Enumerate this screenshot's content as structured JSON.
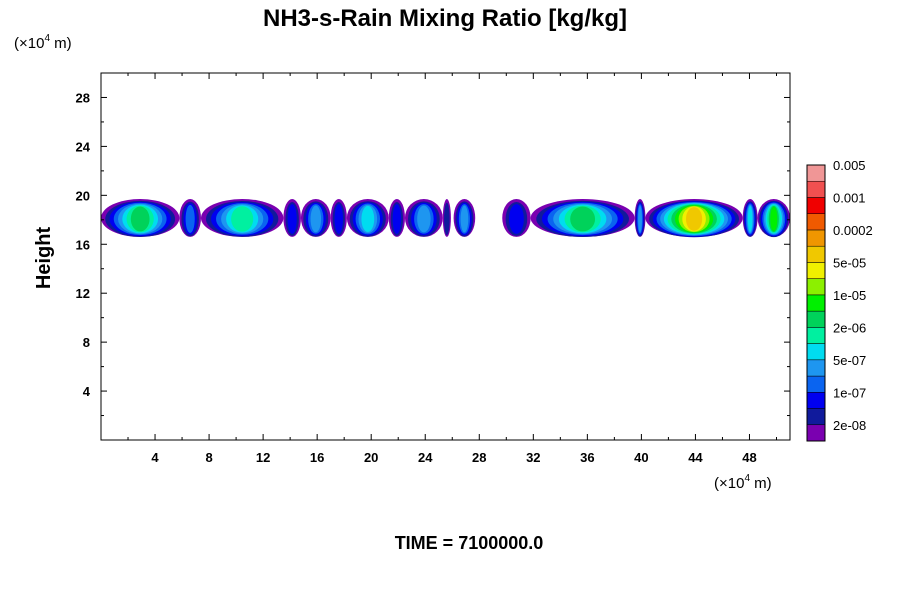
{
  "chart_data": {
    "type": "heatmap",
    "title": "NH3-s-Rain Mixing Ratio [kg/kg]",
    "ylabel": "Height",
    "x_unit": [
      "(×10",
      "4",
      " m)"
    ],
    "y_unit": [
      "(×10",
      "4",
      " m)"
    ],
    "xlim": [
      0,
      51
    ],
    "ylim": [
      0,
      30
    ],
    "x_ticks": [
      4,
      8,
      12,
      16,
      20,
      24,
      28,
      32,
      36,
      40,
      44,
      48
    ],
    "y_ticks": [
      4,
      8,
      12,
      16,
      20,
      24,
      28
    ],
    "time_label": "TIME = 7100000.0",
    "colorbar": {
      "colors": [
        "#7a00b0",
        "#101a9c",
        "#0000f0",
        "#0a64f0",
        "#1e96f0",
        "#00dcf0",
        "#00f0a0",
        "#00d25a",
        "#00f000",
        "#8cf000",
        "#f0f000",
        "#f0c800",
        "#f09600",
        "#f05a00",
        "#f00000",
        "#f05050",
        "#f09696"
      ],
      "labels": [
        "2e-08",
        "1e-07",
        "5e-07",
        "2e-06",
        "1e-05",
        "5e-05",
        "0.0002",
        "0.001",
        "0.005"
      ]
    },
    "cloud_band": {
      "ymin": 16.6,
      "ymax": 19.7,
      "segments": [
        {
          "x0": 0,
          "x1": 5.8,
          "level": 7
        },
        {
          "x0": 5.8,
          "x1": 7.4,
          "level": 3
        },
        {
          "x0": 7.4,
          "x1": 13.5,
          "level": 6
        },
        {
          "x0": 13.5,
          "x1": 14.8,
          "level": 2
        },
        {
          "x0": 14.8,
          "x1": 17.0,
          "level": 4
        },
        {
          "x0": 17.0,
          "x1": 18.2,
          "level": 2
        },
        {
          "x0": 18.2,
          "x1": 21.3,
          "level": 5
        },
        {
          "x0": 21.3,
          "x1": 22.5,
          "level": 2
        },
        {
          "x0": 22.5,
          "x1": 25.3,
          "level": 4
        },
        {
          "x0": 25.3,
          "x1": 25.9,
          "level": 1
        },
        {
          "x0": 26.1,
          "x1": 27.7,
          "level": 4
        },
        {
          "x0": 29.7,
          "x1": 31.8,
          "level": 2
        },
        {
          "x0": 31.8,
          "x1": 39.5,
          "level": 7
        },
        {
          "x0": 39.5,
          "x1": 40.3,
          "level": 4
        },
        {
          "x0": 40.3,
          "x1": 47.5,
          "level": 11
        },
        {
          "x0": 47.5,
          "x1": 48.6,
          "level": 5
        },
        {
          "x0": 48.6,
          "x1": 51.0,
          "level": 8
        }
      ]
    }
  }
}
